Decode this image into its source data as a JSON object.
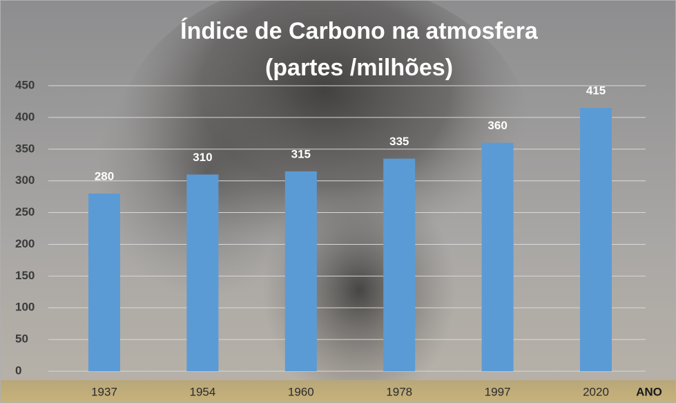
{
  "chart_data": {
    "type": "bar",
    "title": "Índice de Carbono na atmosfera",
    "subtitle": "(partes /milhões)",
    "x_label": "ANO",
    "categories": [
      "1937",
      "1954",
      "1960",
      "1978",
      "1997",
      "2020"
    ],
    "values": [
      280,
      310,
      315,
      335,
      360,
      415
    ],
    "color": "#5b9bd5",
    "ylim": [
      0,
      450
    ],
    "yticks": [
      0,
      50,
      100,
      150,
      200,
      250,
      300,
      350,
      400,
      450
    ],
    "grid": true
  }
}
